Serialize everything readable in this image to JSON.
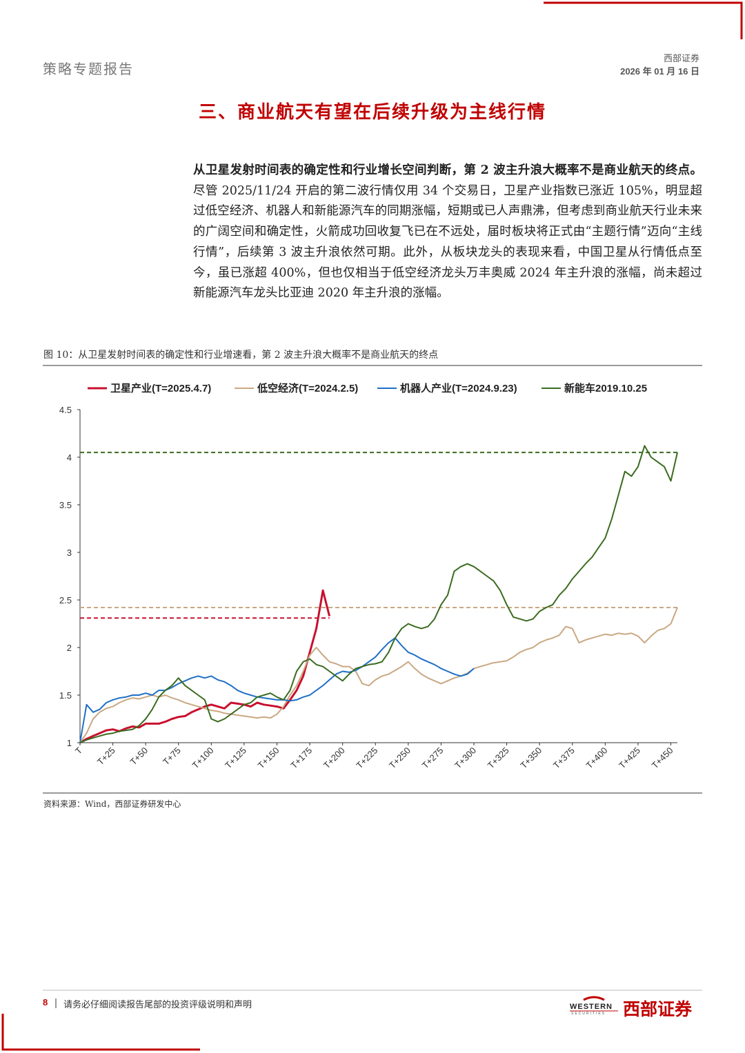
{
  "header": {
    "left": "策略专题报告",
    "company": "西部证券",
    "date": "2026 年 01 月 16 日"
  },
  "section_title": "三、商业航天有望在后续升级为主线行情",
  "paragraph": {
    "bold": "从卫星发射时间表的确定性和行业增长空间判断，第 2 波主升浪大概率不是商业航天的终点。",
    "text": "尽管 2025/11/24 开启的第二波行情仅用 34 个交易日，卫星产业指数已涨近 105%，明显超过低空经济、机器人和新能源汽车的同期涨幅，短期或已人声鼎沸，但考虑到商业航天行业未来的广阔空间和确定性，火箭成功回收复飞已在不远处，届时板块将正式由“主题行情”迈向“主线行情”，后续第 3 波主升浪依然可期。此外，从板块龙头的表现来看，中国卫星从行情低点至今，虽已涨超 400%，但也仅相当于低空经济龙头万丰奥威 2024 年主升浪的涨幅，尚未超过新能源汽车龙头比亚迪 2020 年主升浪的涨幅。"
  },
  "figure": {
    "caption": "图 10：从卫星发射时间表的确定性和行业增速看，第 2 波主升浪大概率不是商业航天的终点",
    "source": "资料来源：Wind，西部证券研发中心"
  },
  "footer": {
    "page": "8",
    "note": "请务必仔细阅读报告尾部的投资评级说明和声明",
    "logo_en": "WESTERN",
    "logo_sub": "SECURITIES",
    "logo_cn": "西部证券"
  },
  "chart_data": {
    "type": "line",
    "x": [
      0,
      5,
      10,
      15,
      20,
      25,
      30,
      35,
      40,
      45,
      50,
      55,
      60,
      65,
      70,
      75,
      80,
      85,
      90,
      95,
      100,
      105,
      110,
      115,
      120,
      125,
      130,
      135,
      140,
      145,
      150,
      155,
      160,
      165,
      170,
      175,
      180,
      185,
      190,
      195,
      200,
      205,
      210,
      215,
      220,
      225,
      230,
      235,
      240,
      245,
      250,
      255,
      260,
      265,
      270,
      275,
      280,
      285,
      290,
      295,
      300,
      305,
      310,
      315,
      320,
      325,
      330,
      335,
      340,
      345,
      350,
      355,
      360,
      365,
      370,
      375,
      380,
      385,
      390,
      395,
      400,
      405,
      410,
      415,
      420,
      425,
      430,
      435,
      440,
      445,
      450,
      455
    ],
    "xlim": [
      0,
      455
    ],
    "xticks": [
      {
        "value": 0,
        "label": "T"
      },
      {
        "value": 25,
        "label": "T+25"
      },
      {
        "value": 50,
        "label": "T+50"
      },
      {
        "value": 75,
        "label": "T+75"
      },
      {
        "value": 100,
        "label": "T+100"
      },
      {
        "value": 125,
        "label": "T+125"
      },
      {
        "value": 150,
        "label": "T+150"
      },
      {
        "value": 175,
        "label": "T+175"
      },
      {
        "value": 200,
        "label": "T+200"
      },
      {
        "value": 225,
        "label": "T+225"
      },
      {
        "value": 250,
        "label": "T+250"
      },
      {
        "value": 275,
        "label": "T+275"
      },
      {
        "value": 300,
        "label": "T+300"
      },
      {
        "value": 325,
        "label": "T+325"
      },
      {
        "value": 350,
        "label": "T+350"
      },
      {
        "value": 375,
        "label": "T+375"
      },
      {
        "value": 400,
        "label": "T+400"
      },
      {
        "value": 425,
        "label": "T+425"
      },
      {
        "value": 450,
        "label": "T+450"
      }
    ],
    "ylim": [
      1,
      4.5
    ],
    "yticks": [
      1,
      1.5,
      2,
      2.5,
      3,
      3.5,
      4,
      4.5
    ],
    "series": [
      {
        "name": "卫星产业(T=2025.4.7)",
        "color": "#c8102e",
        "width": 3,
        "hline": 2.31,
        "values": [
          1.0,
          1.04,
          1.07,
          1.1,
          1.13,
          1.14,
          1.12,
          1.15,
          1.17,
          1.16,
          1.2,
          1.2,
          1.2,
          1.22,
          1.25,
          1.27,
          1.28,
          1.32,
          1.35,
          1.38,
          1.4,
          1.38,
          1.36,
          1.42,
          1.41,
          1.4,
          1.38,
          1.42,
          1.4,
          1.39,
          1.38,
          1.36,
          1.45,
          1.55,
          1.7,
          1.95,
          2.2,
          2.6,
          2.33,
          null,
          null,
          null,
          null,
          null,
          null,
          null,
          null,
          null,
          null,
          null,
          null,
          null,
          null,
          null,
          null,
          null,
          null,
          null,
          null,
          null,
          null,
          null,
          null,
          null,
          null,
          null,
          null,
          null,
          null,
          null,
          null,
          null,
          null,
          null,
          null,
          null,
          null,
          null,
          null,
          null,
          null,
          null,
          null,
          null,
          null,
          null,
          null,
          null,
          null,
          null,
          null,
          null
        ]
      },
      {
        "name": "低空经济(T=2024.2.5)",
        "color": "#c9a882",
        "width": 2,
        "hline": 2.42,
        "values": [
          1.0,
          1.1,
          1.25,
          1.32,
          1.36,
          1.38,
          1.42,
          1.45,
          1.47,
          1.46,
          1.48,
          1.5,
          1.48,
          1.5,
          1.47,
          1.45,
          1.42,
          1.4,
          1.38,
          1.36,
          1.34,
          1.33,
          1.31,
          1.3,
          1.29,
          1.28,
          1.27,
          1.26,
          1.27,
          1.26,
          1.3,
          1.38,
          1.5,
          1.6,
          1.75,
          1.92,
          2.0,
          1.92,
          1.85,
          1.83,
          1.8,
          1.8,
          1.75,
          1.62,
          1.6,
          1.66,
          1.7,
          1.72,
          1.76,
          1.8,
          1.85,
          1.78,
          1.72,
          1.68,
          1.65,
          1.62,
          1.65,
          1.68,
          1.7,
          1.73,
          1.78,
          1.8,
          1.82,
          1.84,
          1.85,
          1.86,
          1.9,
          1.95,
          1.98,
          2.0,
          2.05,
          2.08,
          2.1,
          2.13,
          2.22,
          2.2,
          2.05,
          2.08,
          2.1,
          2.12,
          2.14,
          2.13,
          2.15,
          2.14,
          2.15,
          2.12,
          2.05,
          2.12,
          2.18,
          2.2,
          2.25,
          2.42
        ]
      },
      {
        "name": "机器人产业(T=2024.9.23)",
        "color": "#1f6fc5",
        "width": 2,
        "values": [
          1.0,
          1.4,
          1.32,
          1.35,
          1.42,
          1.45,
          1.47,
          1.48,
          1.5,
          1.5,
          1.52,
          1.5,
          1.55,
          1.55,
          1.58,
          1.62,
          1.65,
          1.68,
          1.7,
          1.68,
          1.7,
          1.66,
          1.64,
          1.6,
          1.55,
          1.52,
          1.5,
          1.48,
          1.47,
          1.46,
          1.45,
          1.45,
          1.44,
          1.45,
          1.48,
          1.5,
          1.55,
          1.6,
          1.66,
          1.72,
          1.75,
          1.74,
          1.76,
          1.8,
          1.85,
          1.9,
          1.98,
          2.05,
          2.1,
          2.02,
          1.95,
          1.92,
          1.88,
          1.85,
          1.82,
          1.78,
          1.75,
          1.72,
          1.7,
          1.72,
          1.78,
          null,
          null,
          null,
          null,
          null,
          null,
          null,
          null,
          null,
          null,
          null,
          null,
          null,
          null,
          null,
          null,
          null,
          null,
          null,
          null,
          null,
          null,
          null,
          null,
          null,
          null,
          null,
          null,
          null,
          null,
          null
        ]
      },
      {
        "name": "新能车2019.10.25",
        "color": "#3a6b1f",
        "width": 2,
        "hline": 4.05,
        "values": [
          1.0,
          1.03,
          1.05,
          1.07,
          1.09,
          1.1,
          1.12,
          1.13,
          1.14,
          1.18,
          1.25,
          1.35,
          1.48,
          1.55,
          1.6,
          1.68,
          1.6,
          1.55,
          1.5,
          1.45,
          1.25,
          1.22,
          1.25,
          1.3,
          1.35,
          1.4,
          1.42,
          1.48,
          1.5,
          1.52,
          1.48,
          1.45,
          1.55,
          1.75,
          1.85,
          1.88,
          1.82,
          1.8,
          1.75,
          1.7,
          1.65,
          1.72,
          1.78,
          1.8,
          1.82,
          1.83,
          1.85,
          1.95,
          2.1,
          2.2,
          2.25,
          2.22,
          2.2,
          2.22,
          2.3,
          2.45,
          2.55,
          2.8,
          2.85,
          2.88,
          2.85,
          2.8,
          2.75,
          2.7,
          2.6,
          2.45,
          2.32,
          2.3,
          2.28,
          2.3,
          2.38,
          2.42,
          2.45,
          2.55,
          2.62,
          2.72,
          2.8,
          2.88,
          2.95,
          3.05,
          3.15,
          3.35,
          3.6,
          3.85,
          3.8,
          3.9,
          4.12,
          4.0,
          3.95,
          3.9,
          3.75,
          4.05
        ]
      }
    ]
  }
}
